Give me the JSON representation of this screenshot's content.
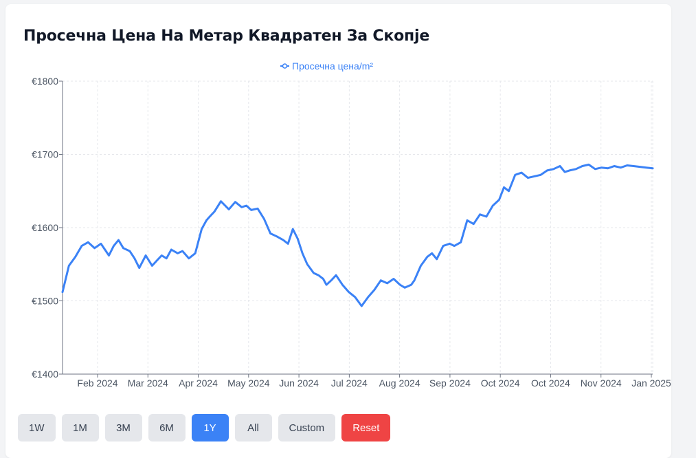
{
  "chart_data": {
    "type": "line",
    "title": "Просечна Цена На Метар Квадратен За Скопје",
    "legend": "top-center",
    "grid": true,
    "ylim": [
      1400,
      1800
    ],
    "y_ticks": [
      "€1800",
      "€1700",
      "€1600",
      "€1500",
      "€1400"
    ],
    "x_ticks": [
      "Feb 2024",
      "Mar 2024",
      "Apr 2024",
      "May 2024",
      "Jun 2024",
      "Jul 2024",
      "Aug 2024",
      "Sep 2024",
      "Oct 2024",
      "Oct 2024",
      "Nov 2024",
      "Jan 2025"
    ],
    "xlim": [
      "2024-01-01",
      "2025-01-04"
    ],
    "colors": {
      "line": "#3b82f6"
    },
    "series": [
      {
        "name": "Просечна цена/m²",
        "x": [
          "2024-01-01",
          "2024-01-05",
          "2024-01-09",
          "2024-01-13",
          "2024-01-17",
          "2024-01-21",
          "2024-01-25",
          "2024-01-30",
          "2024-02-02",
          "2024-02-05",
          "2024-02-08",
          "2024-02-12",
          "2024-02-15",
          "2024-02-18",
          "2024-02-22",
          "2024-02-26",
          "2024-02-29",
          "2024-03-03",
          "2024-03-06",
          "2024-03-09",
          "2024-03-13",
          "2024-03-16",
          "2024-03-20",
          "2024-03-24",
          "2024-03-28",
          "2024-03-31",
          "2024-04-02",
          "2024-04-05",
          "2024-04-09",
          "2024-04-14",
          "2024-04-18",
          "2024-04-22",
          "2024-04-25",
          "2024-04-28",
          "2024-05-02",
          "2024-05-06",
          "2024-05-10",
          "2024-05-14",
          "2024-05-18",
          "2024-05-21",
          "2024-05-24",
          "2024-05-27",
          "2024-05-30",
          "2024-06-02",
          "2024-06-06",
          "2024-06-09",
          "2024-06-12",
          "2024-06-14",
          "2024-06-17",
          "2024-06-20",
          "2024-06-24",
          "2024-06-28",
          "2024-07-02",
          "2024-07-06",
          "2024-07-10",
          "2024-07-14",
          "2024-07-18",
          "2024-07-22",
          "2024-07-26",
          "2024-07-30",
          "2024-08-02",
          "2024-08-06",
          "2024-08-08",
          "2024-08-12",
          "2024-08-16",
          "2024-08-19",
          "2024-08-22",
          "2024-08-26",
          "2024-08-30",
          "2024-09-02",
          "2024-09-06",
          "2024-09-10",
          "2024-09-14",
          "2024-09-18",
          "2024-09-22",
          "2024-09-26",
          "2024-09-30",
          "2024-10-03",
          "2024-10-06",
          "2024-10-10",
          "2024-10-14",
          "2024-10-18",
          "2024-10-22",
          "2024-10-26",
          "2024-10-30",
          "2024-11-03",
          "2024-11-07",
          "2024-11-10",
          "2024-11-13",
          "2024-11-17",
          "2024-11-21",
          "2024-11-25",
          "2024-11-29",
          "2024-12-03",
          "2024-12-07",
          "2024-12-11",
          "2024-12-15",
          "2024-12-19",
          "2024-12-23",
          "2024-12-27",
          "2024-12-31",
          "2025-01-04"
        ],
        "values": [
          1512,
          1548,
          1560,
          1575,
          1580,
          1572,
          1578,
          1562,
          1575,
          1583,
          1572,
          1568,
          1558,
          1545,
          1562,
          1548,
          1555,
          1562,
          1558,
          1570,
          1565,
          1568,
          1558,
          1565,
          1598,
          1610,
          1615,
          1622,
          1636,
          1625,
          1635,
          1628,
          1630,
          1624,
          1626,
          1612,
          1592,
          1588,
          1583,
          1578,
          1598,
          1585,
          1565,
          1550,
          1538,
          1535,
          1530,
          1522,
          1528,
          1535,
          1522,
          1512,
          1505,
          1493,
          1505,
          1515,
          1528,
          1524,
          1530,
          1522,
          1518,
          1522,
          1528,
          1548,
          1560,
          1565,
          1557,
          1575,
          1578,
          1575,
          1580,
          1610,
          1605,
          1618,
          1615,
          1630,
          1638,
          1655,
          1650,
          1672,
          1675,
          1668,
          1670,
          1672,
          1678,
          1680,
          1684,
          1676,
          1678,
          1680,
          1684,
          1686,
          1680,
          1682,
          1681,
          1684,
          1682,
          1685,
          1684,
          1683,
          1682,
          1681
        ]
      }
    ]
  },
  "controls": {
    "buttons": [
      {
        "label": "1W"
      },
      {
        "label": "1M"
      },
      {
        "label": "3M"
      },
      {
        "label": "6M"
      },
      {
        "label": "1Y",
        "active": true
      },
      {
        "label": "All"
      },
      {
        "label": "Custom"
      },
      {
        "label": "Reset"
      }
    ]
  }
}
